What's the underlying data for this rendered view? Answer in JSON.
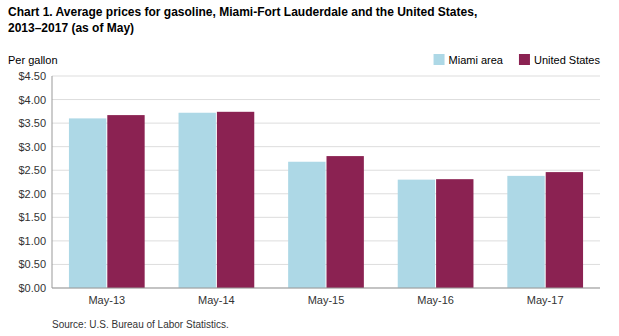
{
  "chart_data": {
    "type": "bar",
    "title": "Chart 1. Average prices for gasoline, Miami-Fort Lauderdale and the United States,",
    "subtitle": "2013–2017  (as of May)",
    "y_label": "Per gallon",
    "annotations": [
      "Source: U.S. Bureau of Labor Statistics."
    ],
    "categories": [
      "May-13",
      "May-14",
      "May-15",
      "May-16",
      "May-17"
    ],
    "series": [
      {
        "name": "Miami area",
        "color": "#ADD8E6",
        "values": [
          3.6,
          3.72,
          2.68,
          2.3,
          2.38
        ]
      },
      {
        "name": "United States",
        "color": "#8B2252",
        "values": [
          3.67,
          3.74,
          2.8,
          2.31,
          2.46
        ]
      }
    ],
    "ylim": [
      0,
      4.5
    ],
    "yticks": [
      {
        "value": 0.0,
        "label": "$0.00"
      },
      {
        "value": 0.5,
        "label": "$0.50"
      },
      {
        "value": 1.0,
        "label": "$1.00"
      },
      {
        "value": 1.5,
        "label": "$1.50"
      },
      {
        "value": 2.0,
        "label": "$2.00"
      },
      {
        "value": 2.5,
        "label": "$2.50"
      },
      {
        "value": 3.0,
        "label": "$3.00"
      },
      {
        "value": 3.5,
        "label": "$3.50"
      },
      {
        "value": 4.0,
        "label": "$4.00"
      },
      {
        "value": 4.5,
        "label": "$4.50"
      }
    ],
    "grid": true,
    "legend": "top"
  }
}
